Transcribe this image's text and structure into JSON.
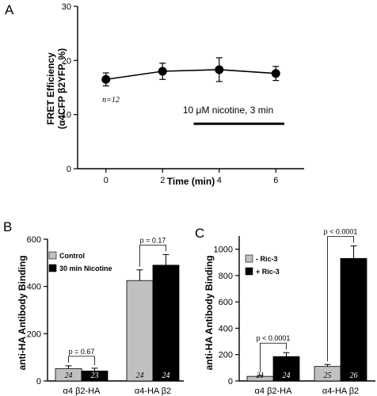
{
  "chart_data": [
    {
      "panel": "A",
      "type": "line",
      "xlabel": "Time (min)",
      "ylabel_line1": "FRET Efficiency",
      "ylabel_line2": "(α4CFP β2YFP, %)",
      "x": [
        0,
        2,
        4,
        6
      ],
      "y": [
        16.5,
        18.0,
        18.3,
        17.6
      ],
      "error": [
        1.2,
        1.5,
        2.2,
        1.3
      ],
      "xticks": [
        0,
        2,
        4,
        6
      ],
      "yticks": [
        0,
        10,
        20,
        30
      ],
      "xlim": [
        -1,
        7
      ],
      "ylim": [
        0,
        30
      ],
      "annotations": {
        "n": "n=12",
        "treatment": "10 μM nicotine, 3 min"
      },
      "treatment_bar": {
        "x_start": 3.1,
        "x_end": 6.3,
        "y": 8.3
      },
      "colors": {
        "line": "#000000",
        "marker": "#000000"
      }
    },
    {
      "panel": "B",
      "type": "bar",
      "ylabel": "anti-HA Antibody Binding",
      "categories": [
        "α4 β2-HA",
        "α4-HA β2"
      ],
      "series": [
        {
          "name": "Control",
          "values": [
            52,
            425
          ],
          "errors": [
            12,
            45
          ],
          "n": [
            "24",
            "24"
          ],
          "color": "#c0c0c0"
        },
        {
          "name": "30 min Nicotine",
          "values": [
            42,
            490
          ],
          "errors": [
            12,
            45
          ],
          "n": [
            "23",
            "24"
          ],
          "color": "#000000"
        }
      ],
      "yticks": [
        0,
        200,
        400,
        600
      ],
      "ylim": [
        0,
        600
      ],
      "pvalues": [
        "p = 0.67",
        "p = 0.17"
      ]
    },
    {
      "panel": "C",
      "type": "bar",
      "ylabel": "anti-HA Antibody Binding",
      "categories": [
        "α4 β2-HA",
        "α4-HA β2"
      ],
      "series": [
        {
          "name": "- Ric-3",
          "values": [
            35,
            110
          ],
          "errors": [
            8,
            15
          ],
          "n": [
            "21",
            "25"
          ],
          "color": "#c0c0c0"
        },
        {
          "name": "+ Ric-3",
          "values": [
            185,
            930
          ],
          "errors": [
            30,
            95
          ],
          "n": [
            "24",
            "26"
          ],
          "color": "#000000"
        }
      ],
      "yticks": [
        0,
        200,
        400,
        600,
        800,
        1000
      ],
      "ylim": [
        0,
        1100
      ],
      "pvalues": [
        "p < 0.0001",
        "p < 0.0001"
      ]
    }
  ]
}
